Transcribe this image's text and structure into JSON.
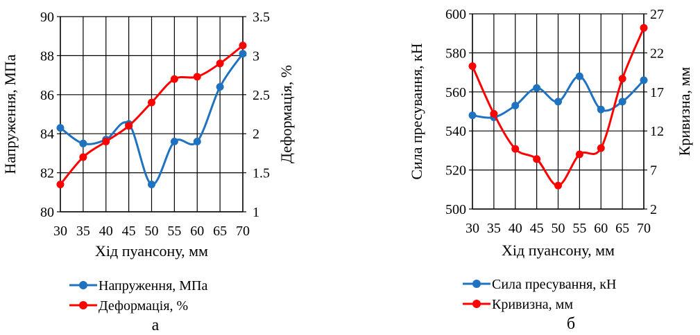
{
  "chart_data": [
    {
      "type": "line",
      "panel_label": "а",
      "xlabel": "Хід пуансону, мм",
      "ylabel": "Напруження, МПа",
      "y2label": "Деформація, %",
      "x": [
        30,
        35,
        40,
        45,
        50,
        55,
        60,
        65,
        70
      ],
      "xlim": [
        30,
        70
      ],
      "ylim": [
        80,
        90
      ],
      "yticks": [
        "80",
        "82",
        "84",
        "86",
        "88",
        "90"
      ],
      "y2lim": [
        1,
        3.5
      ],
      "y2ticks": [
        "1",
        "1.5",
        "2",
        "2.5",
        "3",
        "3.5"
      ],
      "grid": true,
      "legend_position": "bottom",
      "series": [
        {
          "name": "Напруження, МПа",
          "axis": "left",
          "color": "#1f72c0",
          "values": [
            84.3,
            83.5,
            83.7,
            84.5,
            81.4,
            83.6,
            83.6,
            86.4,
            88.1
          ]
        },
        {
          "name": "Деформація, %",
          "axis": "right",
          "color": "#ff0000",
          "values": [
            1.35,
            1.7,
            1.9,
            2.1,
            2.4,
            2.7,
            2.73,
            2.9,
            3.13
          ]
        }
      ]
    },
    {
      "type": "line",
      "panel_label": "б",
      "xlabel": "Хід пуансону, мм",
      "ylabel": "Сила пресування, кН",
      "y2label": "Кривизна, мм",
      "x": [
        30,
        35,
        40,
        45,
        50,
        55,
        60,
        65,
        70
      ],
      "xlim": [
        30,
        70
      ],
      "ylim": [
        500,
        600
      ],
      "yticks": [
        "500",
        "520",
        "540",
        "560",
        "580",
        "600"
      ],
      "y2lim": [
        2,
        27
      ],
      "y2ticks": [
        "2",
        "7",
        "12",
        "17",
        "22",
        "27"
      ],
      "y2ticks_note": "",
      "grid": true,
      "legend_position": "bottom",
      "series": [
        {
          "name": "Сила пресування, кН",
          "axis": "left",
          "color": "#1f72c0",
          "values": [
            548,
            547,
            553,
            562,
            555,
            568,
            551,
            555,
            566
          ]
        },
        {
          "name": "Кривизна, мм",
          "axis": "right",
          "color": "#ff0000",
          "values": [
            20.3,
            14.2,
            9.7,
            8.4,
            5.0,
            9.0,
            9.8,
            18.7,
            25.2
          ]
        }
      ]
    }
  ]
}
